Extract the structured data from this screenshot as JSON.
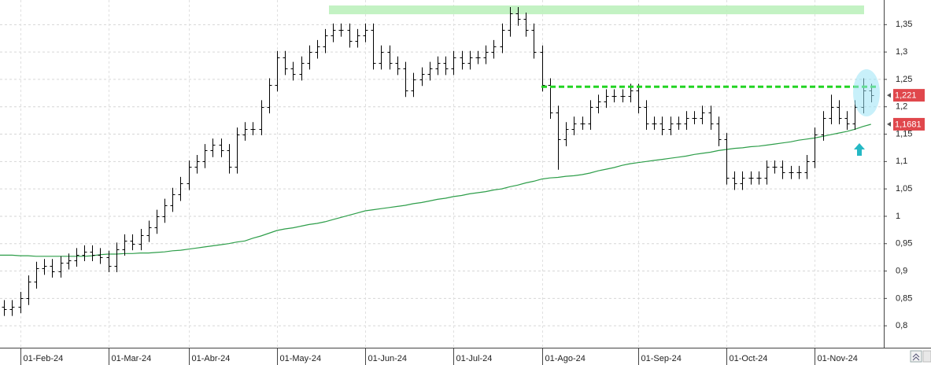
{
  "chart_data": {
    "type": "ohlc",
    "categories": [
      null,
      null,
      "01-Feb-24",
      null,
      null,
      null,
      null,
      null,
      null,
      null,
      null,
      null,
      null,
      "01-Mar-24",
      null,
      null,
      null,
      null,
      null,
      null,
      null,
      null,
      null,
      "01-Abr-24",
      null,
      null,
      null,
      null,
      null,
      null,
      null,
      null,
      null,
      null,
      "01-May-24",
      null,
      null,
      null,
      null,
      null,
      null,
      null,
      null,
      null,
      null,
      "01-Jun-24",
      null,
      null,
      null,
      null,
      null,
      null,
      null,
      null,
      null,
      null,
      "01-Jul-24",
      null,
      null,
      null,
      null,
      null,
      null,
      null,
      null,
      null,
      null,
      "01-Ago-24",
      null,
      null,
      null,
      null,
      null,
      null,
      null,
      null,
      null,
      null,
      null,
      "01-Sep-24",
      null,
      null,
      null,
      null,
      null,
      null,
      null,
      null,
      null,
      null,
      "01-Oct-24",
      null,
      null,
      null,
      null,
      null,
      null,
      null,
      null,
      null,
      null,
      "01-Nov-24",
      null,
      null,
      null,
      null,
      null,
      null,
      null
    ],
    "open": [
      0.835,
      0.83,
      0.835,
      0.85,
      0.88,
      0.905,
      0.91,
      0.9,
      0.915,
      0.92,
      0.93,
      0.935,
      0.93,
      0.925,
      0.91,
      0.94,
      0.955,
      0.95,
      0.965,
      0.98,
      1.0,
      1.02,
      1.04,
      1.06,
      1.09,
      1.1,
      1.12,
      1.13,
      1.12,
      1.09,
      1.15,
      1.16,
      1.16,
      1.2,
      1.24,
      1.29,
      1.27,
      1.26,
      1.28,
      1.3,
      1.31,
      1.33,
      1.34,
      1.34,
      1.32,
      1.33,
      1.34,
      1.28,
      1.3,
      1.28,
      1.27,
      1.23,
      1.25,
      1.26,
      1.27,
      1.28,
      1.27,
      1.29,
      1.28,
      1.29,
      1.29,
      1.3,
      1.31,
      1.34,
      1.37,
      1.36,
      1.34,
      1.3,
      1.24,
      1.19,
      1.14,
      1.16,
      1.17,
      1.17,
      1.2,
      1.21,
      1.22,
      1.22,
      1.22,
      1.23,
      1.2,
      1.17,
      1.17,
      1.16,
      1.17,
      1.17,
      1.18,
      1.18,
      1.19,
      1.17,
      1.14,
      1.07,
      1.06,
      1.07,
      1.07,
      1.07,
      1.09,
      1.09,
      1.08,
      1.08,
      1.08,
      1.1,
      1.15,
      1.18,
      1.2,
      1.18,
      1.17,
      1.2,
      1.23
    ],
    "high": [
      0.847,
      0.847,
      0.862,
      0.892,
      0.917,
      0.922,
      0.922,
      0.927,
      0.932,
      0.942,
      0.947,
      0.947,
      0.942,
      0.937,
      0.952,
      0.967,
      0.967,
      0.977,
      0.992,
      1.012,
      1.032,
      1.052,
      1.072,
      1.102,
      1.112,
      1.132,
      1.142,
      1.142,
      1.132,
      1.162,
      1.172,
      1.172,
      1.212,
      1.252,
      1.302,
      1.302,
      1.282,
      1.292,
      1.312,
      1.322,
      1.342,
      1.352,
      1.352,
      1.352,
      1.342,
      1.352,
      1.352,
      1.312,
      1.312,
      1.292,
      1.282,
      1.262,
      1.272,
      1.282,
      1.292,
      1.292,
      1.302,
      1.302,
      1.302,
      1.302,
      1.312,
      1.322,
      1.352,
      1.382,
      1.382,
      1.372,
      1.352,
      1.312,
      1.252,
      1.202,
      1.172,
      1.182,
      1.182,
      1.212,
      1.222,
      1.232,
      1.232,
      1.232,
      1.242,
      1.242,
      1.212,
      1.182,
      1.182,
      1.182,
      1.182,
      1.192,
      1.192,
      1.202,
      1.202,
      1.182,
      1.152,
      1.082,
      1.082,
      1.082,
      1.082,
      1.102,
      1.102,
      1.102,
      1.092,
      1.092,
      1.112,
      1.162,
      1.192,
      1.222,
      1.212,
      1.192,
      1.212,
      1.252,
      1.242
    ],
    "low": [
      0.818,
      0.818,
      0.823,
      0.838,
      0.868,
      0.893,
      0.888,
      0.888,
      0.903,
      0.908,
      0.918,
      0.918,
      0.913,
      0.898,
      0.898,
      0.928,
      0.938,
      0.938,
      0.953,
      0.968,
      0.988,
      1.008,
      1.028,
      1.048,
      1.078,
      1.088,
      1.108,
      1.108,
      1.078,
      1.078,
      1.138,
      1.148,
      1.148,
      1.188,
      1.228,
      1.258,
      1.248,
      1.248,
      1.268,
      1.288,
      1.298,
      1.318,
      1.328,
      1.308,
      1.308,
      1.318,
      1.268,
      1.268,
      1.268,
      1.258,
      1.218,
      1.218,
      1.238,
      1.248,
      1.258,
      1.258,
      1.258,
      1.268,
      1.268,
      1.278,
      1.278,
      1.288,
      1.298,
      1.328,
      1.348,
      1.328,
      1.288,
      1.228,
      1.178,
      1.085,
      1.128,
      1.148,
      1.158,
      1.158,
      1.188,
      1.198,
      1.208,
      1.208,
      1.208,
      1.188,
      1.158,
      1.158,
      1.148,
      1.148,
      1.158,
      1.158,
      1.168,
      1.168,
      1.158,
      1.128,
      1.058,
      1.048,
      1.048,
      1.058,
      1.058,
      1.058,
      1.078,
      1.068,
      1.068,
      1.068,
      1.068,
      1.088,
      1.138,
      1.168,
      1.168,
      1.158,
      1.158,
      1.188,
      1.208
    ],
    "close": [
      0.83,
      0.835,
      0.85,
      0.88,
      0.905,
      0.91,
      0.9,
      0.915,
      0.92,
      0.93,
      0.935,
      0.93,
      0.925,
      0.91,
      0.94,
      0.955,
      0.95,
      0.965,
      0.98,
      1.0,
      1.02,
      1.04,
      1.06,
      1.09,
      1.1,
      1.12,
      1.13,
      1.12,
      1.09,
      1.15,
      1.16,
      1.16,
      1.2,
      1.24,
      1.29,
      1.27,
      1.26,
      1.28,
      1.3,
      1.31,
      1.33,
      1.34,
      1.34,
      1.32,
      1.33,
      1.34,
      1.28,
      1.3,
      1.28,
      1.27,
      1.23,
      1.25,
      1.26,
      1.27,
      1.28,
      1.27,
      1.29,
      1.28,
      1.29,
      1.29,
      1.3,
      1.31,
      1.34,
      1.37,
      1.36,
      1.34,
      1.3,
      1.24,
      1.19,
      1.14,
      1.16,
      1.17,
      1.17,
      1.2,
      1.21,
      1.22,
      1.22,
      1.22,
      1.23,
      1.2,
      1.17,
      1.17,
      1.16,
      1.17,
      1.17,
      1.18,
      1.18,
      1.19,
      1.17,
      1.14,
      1.07,
      1.06,
      1.07,
      1.07,
      1.07,
      1.09,
      1.09,
      1.08,
      1.08,
      1.08,
      1.1,
      1.15,
      1.18,
      1.2,
      1.18,
      1.17,
      1.2,
      1.23,
      1.221
    ],
    "color": "#000000",
    "moving_average": {
      "color": "#2e9e4a",
      "values": [
        0.929,
        0.929,
        0.928,
        0.928,
        0.927,
        0.927,
        0.927,
        0.927,
        0.927,
        0.927,
        0.927,
        0.928,
        0.93,
        0.931,
        0.931,
        0.932,
        0.932,
        0.933,
        0.933,
        0.934,
        0.935,
        0.937,
        0.938,
        0.94,
        0.942,
        0.944,
        0.946,
        0.948,
        0.95,
        0.953,
        0.955,
        0.96,
        0.964,
        0.969,
        0.974,
        0.977,
        0.979,
        0.982,
        0.985,
        0.987,
        0.99,
        0.994,
        0.998,
        1.002,
        1.006,
        1.01,
        1.012,
        1.014,
        1.016,
        1.018,
        1.02,
        1.023,
        1.025,
        1.028,
        1.031,
        1.033,
        1.036,
        1.038,
        1.041,
        1.043,
        1.045,
        1.048,
        1.05,
        1.054,
        1.057,
        1.061,
        1.064,
        1.068,
        1.07,
        1.071,
        1.073,
        1.074,
        1.076,
        1.079,
        1.083,
        1.086,
        1.089,
        1.093,
        1.096,
        1.098,
        1.1,
        1.102,
        1.104,
        1.106,
        1.108,
        1.11,
        1.113,
        1.115,
        1.117,
        1.12,
        1.122,
        1.124,
        1.125,
        1.127,
        1.128,
        1.13,
        1.132,
        1.134,
        1.136,
        1.139,
        1.141,
        1.143,
        1.146,
        1.149,
        1.152,
        1.155,
        1.159,
        1.164,
        1.168
      ]
    },
    "last_price": {
      "value": 1.221,
      "label": "1,221"
    },
    "ma_last": {
      "value": 1.1681,
      "label": "1,1681"
    },
    "resistance_band": [
      1.369,
      1.385
    ],
    "support_level": 1.2366,
    "ylim": [
      0.76,
      1.395
    ],
    "yticks": [
      {
        "value": 0.8,
        "label": "0,8"
      },
      {
        "value": 0.85,
        "label": "0,85"
      },
      {
        "value": 0.9,
        "label": "0,9"
      },
      {
        "value": 0.95,
        "label": "0,95"
      },
      1,
      {
        "value": 1.05,
        "label": "1,05"
      },
      {
        "value": 1.1,
        "label": "1,1"
      },
      {
        "value": 1.15,
        "label": "1,15"
      },
      {
        "value": 1.2,
        "label": "1,2"
      },
      {
        "value": 1.25,
        "label": "1,25"
      },
      {
        "value": 1.3,
        "label": "1,3"
      },
      {
        "value": 1.35,
        "label": "1,35"
      }
    ],
    "grid": true
  }
}
